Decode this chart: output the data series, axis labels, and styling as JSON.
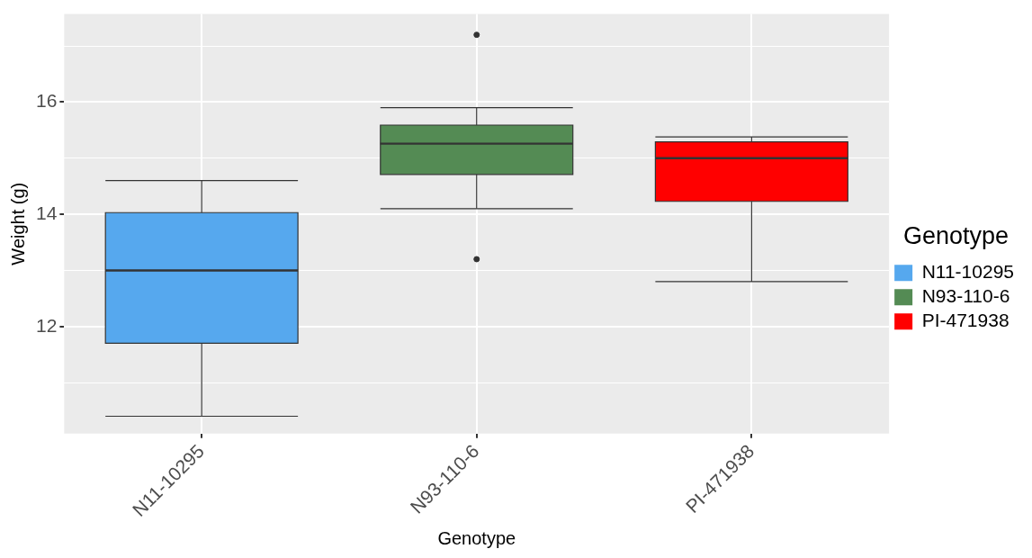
{
  "chart_data": {
    "type": "box",
    "xlabel": "Genotype",
    "ylabel": "Weight (g)",
    "legend_title": "Genotype",
    "legend": "right",
    "grid": true,
    "categories": [
      "N11-10295",
      "N93-110-6",
      "PI-471938"
    ],
    "series": [
      {
        "name": "N11-10295",
        "color": "#56a8ee",
        "boxes": [
          {
            "low": 10.4,
            "q1": 11.7,
            "median": 13.0,
            "q3": 14.03,
            "high": 14.6
          },
          null,
          null
        ]
      },
      {
        "name": "N93-110-6",
        "color": "#548b54",
        "boxes": [
          null,
          {
            "low": 14.1,
            "q1": 14.71,
            "median": 15.26,
            "q3": 15.59,
            "high": 15.9,
            "outliers": [
              17.2,
              13.2
            ]
          },
          null
        ]
      },
      {
        "name": "PI-471938",
        "color": "#ff0000",
        "boxes": [
          null,
          null,
          {
            "low": 12.8,
            "q1": 14.23,
            "median": 15.0,
            "q3": 15.29,
            "high": 15.38
          }
        ]
      }
    ],
    "ylim": [
      10.09,
      17.57
    ],
    "yticks": [
      {
        "value": 11,
        "label": null
      },
      12,
      {
        "value": 13,
        "label": null
      },
      14,
      {
        "value": 15,
        "label": null
      },
      16,
      {
        "value": 17,
        "label": null
      }
    ]
  }
}
